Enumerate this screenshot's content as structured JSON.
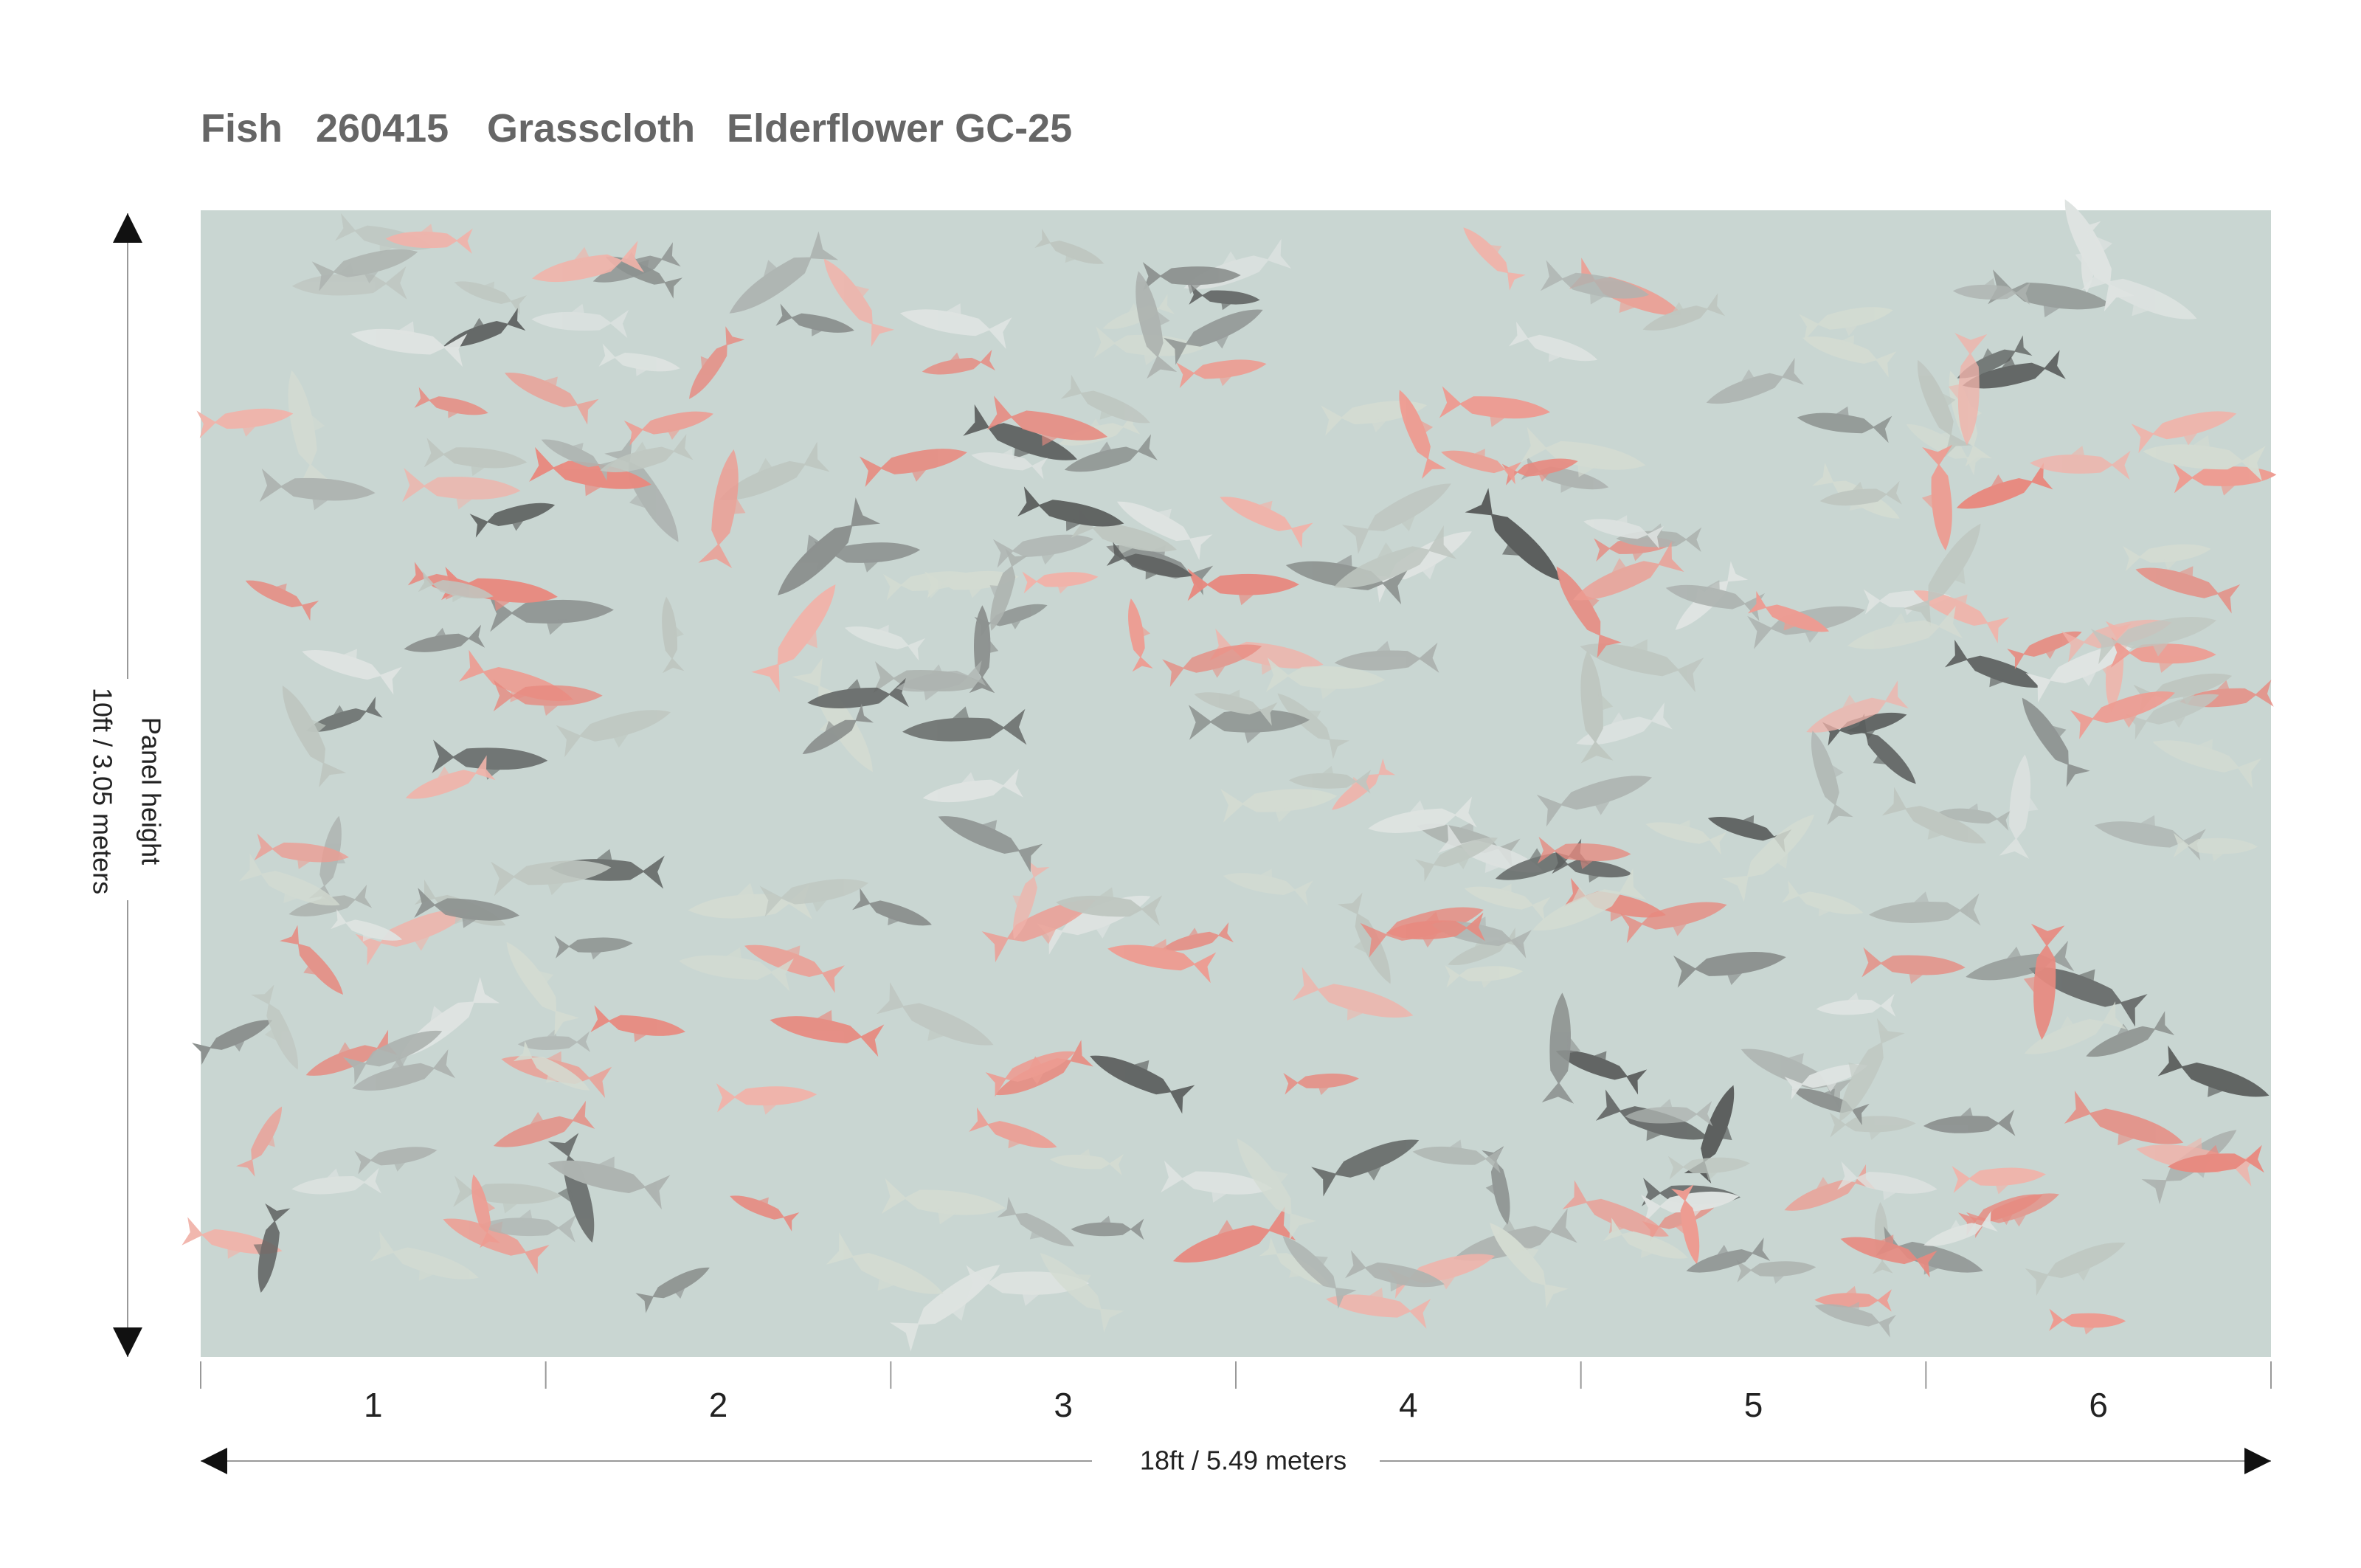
{
  "header": {
    "title_parts": [
      "Fish",
      "260415",
      "Grasscloth",
      "Elderflower GC-25"
    ]
  },
  "panels": {
    "labels": [
      "1",
      "2",
      "3",
      "4",
      "5",
      "6"
    ]
  },
  "width_label": "18ft / 5.49 meters",
  "height_label": {
    "caption": "Panel height",
    "value": "10ft / 3.05 meters"
  }
}
